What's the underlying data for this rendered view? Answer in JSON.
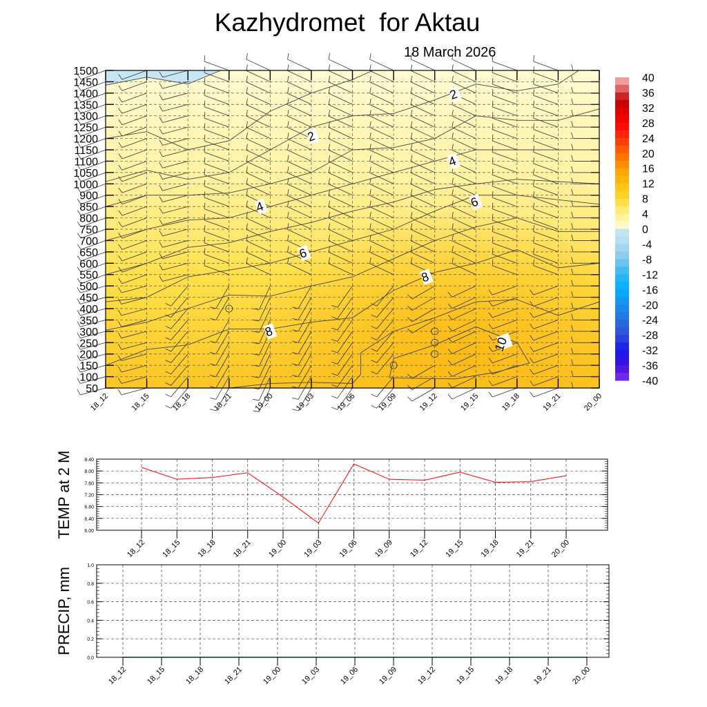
{
  "title": "Kazhydromet  for Aktau",
  "date": "18 March 2026",
  "chart_data": [
    {
      "type": "heatmap",
      "name": "time-height cross section (temperature contours and wind barbs)",
      "x_categories": [
        "18_12",
        "18_15",
        "18_18",
        "18_21",
        "19_00",
        "19_03",
        "19_06",
        "19_09",
        "19_12",
        "19_15",
        "19_18",
        "19_21",
        "20_00"
      ],
      "y_levels": [
        50,
        100,
        150,
        200,
        250,
        300,
        350,
        400,
        450,
        500,
        550,
        600,
        650,
        700,
        750,
        800,
        850,
        900,
        1000,
        1050,
        1100,
        1150,
        1200,
        1250,
        1300,
        1350,
        1400,
        1450,
        1500
      ],
      "y_tick_labels": [
        "50",
        "100",
        "150",
        "200",
        "250",
        "300",
        "350",
        "400",
        "450",
        "500",
        "550",
        "600",
        "650",
        "700",
        "750",
        "800",
        "850",
        "900",
        "1000",
        "1050",
        "1100",
        "1150",
        "1200",
        "1250",
        "1300",
        "1350",
        "1400",
        "1450",
        "1500"
      ],
      "grid": true,
      "contours": [
        {
          "value": 0,
          "points": [
            [
              0,
              1435
            ],
            [
              1,
              1470
            ],
            [
              2,
              1440
            ],
            [
              2.8,
              1500
            ]
          ]
        },
        {
          "value": 2,
          "points": [
            [
              0,
              1200
            ],
            [
              1,
              1230
            ],
            [
              2,
              1150
            ],
            [
              3,
              1190
            ],
            [
              4,
              1320
            ],
            [
              5,
              1400
            ],
            [
              6,
              1460
            ],
            [
              6.5,
              1500
            ]
          ]
        },
        {
          "value": 2,
          "points": [
            [
              0,
              1010
            ],
            [
              1,
              1060
            ],
            [
              2,
              1020
            ],
            [
              3,
              1050
            ],
            [
              4,
              1150
            ],
            [
              5,
              1250
            ],
            [
              6,
              1300
            ],
            [
              7,
              1310
            ],
            [
              8,
              1370
            ],
            [
              9,
              1440
            ],
            [
              10,
              1410
            ],
            [
              11,
              1440
            ],
            [
              11.5,
              1500
            ]
          ]
        },
        {
          "value": 4,
          "points": [
            [
              0,
              850
            ],
            [
              1,
              900
            ],
            [
              2,
              900
            ],
            [
              3,
              920
            ],
            [
              4,
              1000
            ],
            [
              5,
              1050
            ],
            [
              6,
              1150
            ],
            [
              7,
              1160
            ],
            [
              8,
              1200
            ],
            [
              9,
              1300
            ],
            [
              10,
              1280
            ],
            [
              11,
              1280
            ],
            [
              12,
              1330
            ]
          ]
        },
        {
          "value": 4,
          "points": [
            [
              0,
              700
            ],
            [
              1,
              750
            ],
            [
              2,
              790
            ],
            [
              3,
              800
            ],
            [
              4,
              850
            ],
            [
              5,
              900
            ],
            [
              6,
              1000
            ],
            [
              7,
              1050
            ],
            [
              8,
              1100
            ],
            [
              9,
              1150
            ],
            [
              10,
              1150
            ],
            [
              11,
              1150
            ],
            [
              12,
              1150
            ]
          ]
        },
        {
          "value": 6,
          "points": [
            [
              0,
              550
            ],
            [
              1,
              600
            ],
            [
              2,
              670
            ],
            [
              3,
              690
            ],
            [
              4,
              740
            ],
            [
              5,
              780
            ],
            [
              6,
              830
            ],
            [
              7,
              870
            ],
            [
              8,
              950
            ],
            [
              9,
              1000
            ],
            [
              10,
              1020
            ],
            [
              11,
              1010
            ],
            [
              12,
              1000
            ]
          ]
        },
        {
          "value": 6,
          "points": [
            [
              0,
              430
            ],
            [
              1,
              450
            ],
            [
              2,
              540
            ],
            [
              3,
              570
            ],
            [
              4,
              600
            ],
            [
              5,
              650
            ],
            [
              6,
              700
            ],
            [
              7,
              750
            ],
            [
              8,
              830
            ],
            [
              9,
              900
            ],
            [
              10,
              900
            ],
            [
              11,
              880
            ],
            [
              12,
              860
            ]
          ]
        },
        {
          "value": 8,
          "points": [
            [
              0,
              305
            ],
            [
              1,
              340
            ],
            [
              2,
              400
            ],
            [
              3,
              460
            ],
            [
              4,
              455
            ],
            [
              5,
              500
            ],
            [
              6,
              540
            ],
            [
              7,
              620
            ],
            [
              8,
              700
            ],
            [
              9,
              760
            ],
            [
              10,
              800
            ],
            [
              11,
              740
            ],
            [
              12,
              740
            ]
          ]
        },
        {
          "value": 8,
          "points": [
            [
              0,
              150
            ],
            [
              1,
              220
            ],
            [
              2,
              240
            ],
            [
              3,
              310
            ],
            [
              4,
              310
            ],
            [
              5,
              340
            ],
            [
              6,
              360
            ],
            [
              7,
              480
            ],
            [
              8,
              560
            ],
            [
              9,
              600
            ],
            [
              10,
              660
            ],
            [
              11,
              580
            ],
            [
              12,
              600
            ]
          ]
        },
        {
          "value": 9,
          "points": [
            [
              3,
              50
            ],
            [
              4,
              70
            ],
            [
              5,
              75
            ],
            [
              6,
              70
            ],
            [
              6.2,
              110
            ],
            [
              6.2,
              205
            ],
            [
              7,
              300
            ],
            [
              8,
              360
            ],
            [
              9,
              430
            ],
            [
              10,
              440
            ],
            [
              11,
              370
            ],
            [
              12,
              430
            ]
          ]
        },
        {
          "value": 10,
          "points": [
            [
              6.9,
              95
            ],
            [
              7,
              180
            ],
            [
              8,
              240
            ],
            [
              9,
              320
            ],
            [
              10,
              250
            ],
            [
              10.3,
              160
            ],
            [
              9.5,
              120
            ],
            [
              8.5,
              90
            ],
            [
              6.9,
              95
            ]
          ]
        }
      ],
      "contour_labels": [
        {
          "text": "2",
          "t": 5.03,
          "h": 1210
        },
        {
          "text": "2",
          "t": 8.49,
          "h": 1395
        },
        {
          "text": "4",
          "t": 3.78,
          "h": 850
        },
        {
          "text": "4",
          "t": 8.46,
          "h": 1100
        },
        {
          "text": "6",
          "t": 4.83,
          "h": 645
        },
        {
          "text": "6",
          "t": 9.0,
          "h": 870
        },
        {
          "text": "8",
          "t": 4.0,
          "h": 300
        },
        {
          "text": "8",
          "t": 7.8,
          "h": 540
        },
        {
          "text": "10",
          "t": 9.7,
          "h": 255
        }
      ],
      "calm_points": [
        [
          3,
          400
        ],
        [
          7,
          150
        ],
        [
          8,
          300
        ],
        [
          8,
          250
        ],
        [
          8,
          200
        ]
      ],
      "wind_barbs": {
        "upper_angle_deg": [
          200,
          200,
          195,
          160,
          155,
          155,
          155,
          155,
          155,
          155,
          160,
          160,
          180
        ],
        "lower_angle_deg": [
          195,
          195,
          230,
          240,
          245,
          240,
          235,
          230,
          210,
          205,
          200,
          200,
          180
        ]
      },
      "colorbar": {
        "labels": [
          "40",
          "36",
          "32",
          "28",
          "24",
          "20",
          "16",
          "12",
          "8",
          "4",
          "0",
          "-4",
          "-8",
          "-12",
          "-16",
          "-20",
          "-24",
          "-28",
          "-32",
          "-36",
          "-40"
        ],
        "range": [
          -40,
          40
        ],
        "step": 2,
        "anchors": [
          [
            40,
            "#f9b8b8"
          ],
          [
            36,
            "#d84848"
          ],
          [
            34,
            "#c00000"
          ],
          [
            32,
            "#d40000"
          ],
          [
            28,
            "#ff0000"
          ],
          [
            24,
            "#ff3010"
          ],
          [
            20,
            "#ff6800"
          ],
          [
            16,
            "#ff9c00"
          ],
          [
            12,
            "#ffbf10"
          ],
          [
            8,
            "#ffd830"
          ],
          [
            4,
            "#fff088"
          ],
          [
            0,
            "#fffde0"
          ],
          [
            -0.1,
            "#c8e8f4"
          ],
          [
            -4,
            "#b0dcf0"
          ],
          [
            -8,
            "#80c8ec"
          ],
          [
            -12,
            "#30b8f4"
          ],
          [
            -16,
            "#00b0ff"
          ],
          [
            -20,
            "#1890f0"
          ],
          [
            -24,
            "#2870e0"
          ],
          [
            -28,
            "#3050d8"
          ],
          [
            -32,
            "#1818f0"
          ],
          [
            -36,
            "#4010e0"
          ],
          [
            -40,
            "#8030f0"
          ]
        ]
      }
    },
    {
      "type": "line",
      "name": "2m temperature",
      "ylabel": "TEMP at 2 M",
      "categories": [
        "18_12",
        "18_15",
        "18_18",
        "18_21",
        "19_00",
        "19_03",
        "19_06",
        "19_09",
        "19_12",
        "19_15",
        "19_18",
        "19_21",
        "20_00"
      ],
      "values": [
        8.12,
        7.72,
        7.78,
        7.94,
        7.12,
        6.24,
        8.24,
        7.72,
        7.69,
        7.96,
        7.62,
        7.64,
        7.84
      ],
      "ylim": [
        6.0,
        8.4
      ],
      "y_tick_labels": [
        "6.00",
        "6.40",
        "6.80",
        "7.20",
        "7.60",
        "8.00",
        "8.40"
      ],
      "color": "#ff0000",
      "grid": true
    },
    {
      "type": "line",
      "name": "precipitation",
      "ylabel": "PRECIP, mm",
      "categories": [
        "18_12",
        "18_15",
        "18_18",
        "18_21",
        "19_00",
        "19_03",
        "19_06",
        "19_09",
        "19_12",
        "19_15",
        "19_18",
        "19_21",
        "20_00"
      ],
      "values": [
        0,
        0,
        0,
        0,
        0,
        0,
        0,
        0,
        0,
        0,
        0,
        0,
        0
      ],
      "ylim": [
        0,
        1.0
      ],
      "y_tick_labels": [
        "0.0",
        "0.2",
        "0.4",
        "0.6",
        "0.8",
        "1.0"
      ],
      "color": "#2a8a2a",
      "grid": true
    }
  ]
}
